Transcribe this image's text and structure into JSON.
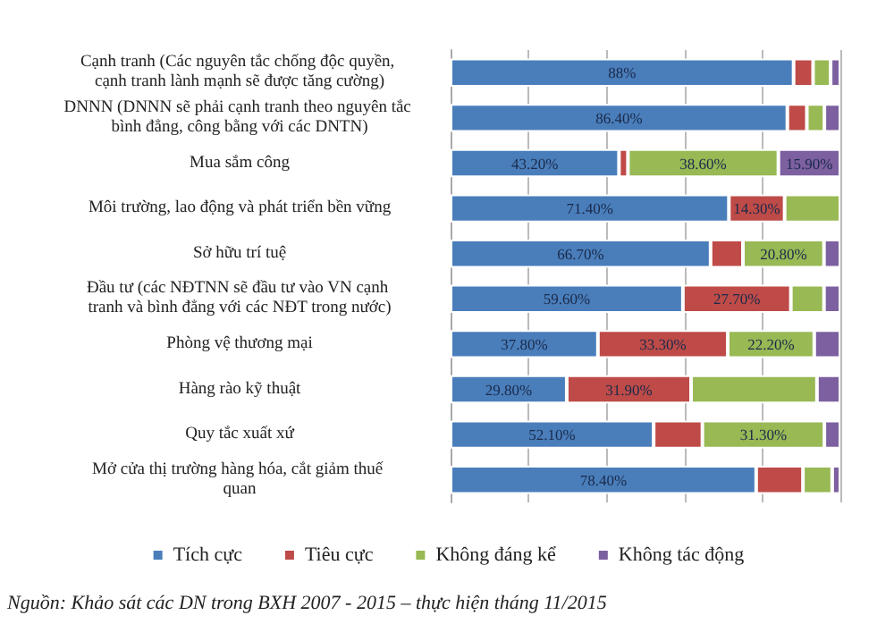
{
  "chart_data": {
    "type": "bar",
    "orientation": "horizontal",
    "stacked": true,
    "categories": [
      "Cạnh tranh (Các nguyên tắc chống độc quyền, cạnh tranh lành mạnh sẽ được tăng cường)",
      "DNNN (DNNN sẽ phải cạnh tranh theo nguyên tắc bình đẳng, công bằng với các DNTN)",
      "Mua sắm công",
      "Môi trường, lao động và phát triển bền vững",
      "Sở hữu trí tuệ",
      "Đầu tư (các NĐTNN sẽ đầu tư vào VN cạnh tranh và bình đẳng với các NĐT trong nước)",
      "Phòng vệ thương mại",
      "Hàng rào kỹ thuật",
      "Quy tắc xuất xứ",
      "Mở cửa thị trường hàng hóa, cắt giảm thuế quan"
    ],
    "series": [
      {
        "name": "Tích cực",
        "color": "#4a7ebb",
        "values": [
          88,
          86.4,
          43.2,
          71.4,
          66.7,
          59.6,
          37.8,
          29.8,
          52.1,
          78.4
        ],
        "value_labels": [
          "88%",
          "86.40%",
          "43.20%",
          "71.40%",
          "66.70%",
          "59.60%",
          "37.80%",
          "29.80%",
          "52.10%",
          "78.40%"
        ]
      },
      {
        "name": "Tiêu cực",
        "color": "#be4b48",
        "values": [
          5,
          5,
          2.3,
          14.3,
          8.3,
          27.7,
          33.3,
          31.9,
          12.5,
          12
        ],
        "value_labels": [
          null,
          null,
          null,
          "14.30%",
          null,
          "27.70%",
          "33.30%",
          "31.90%",
          null,
          null
        ]
      },
      {
        "name": "Không đáng kể",
        "color": "#98b954",
        "values": [
          4.5,
          4.5,
          38.6,
          14.3,
          20.8,
          8.5,
          22.2,
          32.3,
          31.3,
          7.5
        ],
        "value_labels": [
          null,
          null,
          "38.60%",
          null,
          "20.80%",
          null,
          "22.20%",
          null,
          "31.30%",
          null
        ]
      },
      {
        "name": "Không tác động",
        "color": "#7d60a0",
        "values": [
          2.5,
          4.1,
          15.9,
          null,
          4.2,
          4.2,
          6.7,
          6,
          4.1,
          2.1
        ],
        "value_labels": [
          null,
          null,
          "15.90%",
          null,
          null,
          null,
          null,
          null,
          null,
          null
        ]
      }
    ],
    "xlim": [
      0,
      100
    ],
    "xticks": [
      {
        "value": 0,
        "label": null
      },
      {
        "value": 20,
        "label": null
      },
      {
        "value": 40,
        "label": null
      },
      {
        "value": 60,
        "label": null
      },
      {
        "value": 80,
        "label": null
      },
      {
        "value": 100,
        "label": null
      }
    ],
    "tick_labels": "y",
    "grid": "x",
    "legend": "bottom",
    "annotations": [
      "Nguồn: Khảo sát các DN trong BXH 2007 - 2015 – thực hiện tháng 11/2015"
    ]
  }
}
